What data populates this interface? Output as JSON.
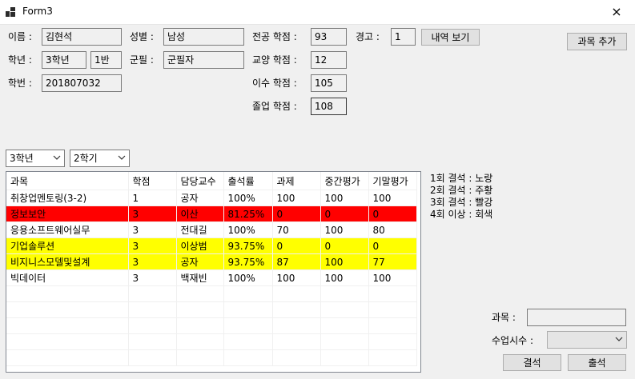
{
  "window": {
    "title": "Form3",
    "close_icon": "×"
  },
  "student": {
    "name_label": "이름 :",
    "name": "김현석",
    "gender_label": "성별 :",
    "gender": "남성",
    "grade_label": "학년 :",
    "grade": "3학년",
    "class": "1반",
    "military_label": "군필 :",
    "military": "군필자",
    "id_label": "학번 :",
    "id": "201807032"
  },
  "credits": {
    "major_label": "전공 학점 :",
    "major": "93",
    "liberal_label": "교양 학점 :",
    "liberal": "12",
    "completed_label": "이수 학점 :",
    "completed": "105",
    "graduation_label": "졸업 학점 :",
    "graduation": "108"
  },
  "warning": {
    "label": "경고 :",
    "value": "1",
    "history_button": "내역 보기"
  },
  "add_course_button": "과목 추가",
  "filters": {
    "grade_selected": "3학년",
    "semester_selected": "2학기"
  },
  "grid": {
    "columns": [
      "과목",
      "학점",
      "담당교수",
      "출석률",
      "과제",
      "중간평가",
      "기말평가"
    ],
    "rows": [
      {
        "cells": [
          "취창업멘토링(3-2)",
          "1",
          "공자",
          "100%",
          "100",
          "100",
          "100"
        ],
        "status": "normal"
      },
      {
        "cells": [
          "정보보안",
          "3",
          "이산",
          "81.25%",
          "0",
          "0",
          "0"
        ],
        "status": "red"
      },
      {
        "cells": [
          "응용소프트웨어실무",
          "3",
          "전대길",
          "100%",
          "70",
          "100",
          "80"
        ],
        "status": "normal"
      },
      {
        "cells": [
          "기업솔루션",
          "3",
          "이상범",
          "93.75%",
          "0",
          "0",
          "0"
        ],
        "status": "yellow"
      },
      {
        "cells": [
          "비지니스모델및설계",
          "3",
          "공자",
          "93.75%",
          "87",
          "100",
          "77"
        ],
        "status": "yellow"
      },
      {
        "cells": [
          "빅데이터",
          "3",
          "백재빈",
          "100%",
          "100",
          "100",
          "100"
        ],
        "status": "normal"
      }
    ],
    "empty_rows": 5
  },
  "legend": [
    "1회 결석 : 노랑",
    "2회 결석 : 주황",
    "3회 결석 : 빨강",
    "4회 이상 : 회색"
  ],
  "attendance_form": {
    "course_label": "과목 :",
    "course_value": "",
    "session_label": "수업시수 :",
    "session_value": "",
    "absent_button": "결석",
    "present_button": "출석"
  },
  "colors": {
    "red_row": "#ff0000",
    "yellow_row": "#ffff00"
  }
}
